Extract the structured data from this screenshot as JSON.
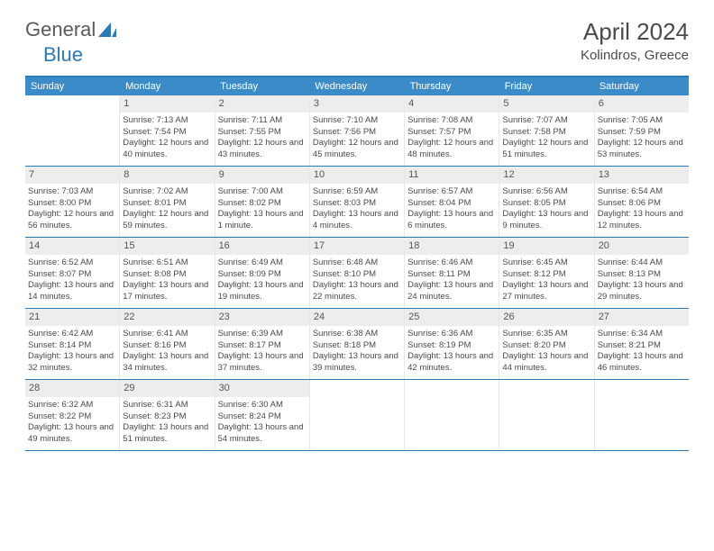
{
  "logo": {
    "text1": "General",
    "text2": "Blue"
  },
  "title": "April 2024",
  "location": "Kolindros, Greece",
  "colors": {
    "header_bg": "#3b8bc8",
    "header_border": "#2a7ab8",
    "daynum_bg": "#ededed",
    "text": "#4a4a4a",
    "cell_border": "#e8e8e8"
  },
  "dow": [
    "Sunday",
    "Monday",
    "Tuesday",
    "Wednesday",
    "Thursday",
    "Friday",
    "Saturday"
  ],
  "weeks": [
    [
      {
        "n": "",
        "sr": "",
        "ss": "",
        "dl": ""
      },
      {
        "n": "1",
        "sr": "7:13 AM",
        "ss": "7:54 PM",
        "dl": "12 hours and 40 minutes."
      },
      {
        "n": "2",
        "sr": "7:11 AM",
        "ss": "7:55 PM",
        "dl": "12 hours and 43 minutes."
      },
      {
        "n": "3",
        "sr": "7:10 AM",
        "ss": "7:56 PM",
        "dl": "12 hours and 45 minutes."
      },
      {
        "n": "4",
        "sr": "7:08 AM",
        "ss": "7:57 PM",
        "dl": "12 hours and 48 minutes."
      },
      {
        "n": "5",
        "sr": "7:07 AM",
        "ss": "7:58 PM",
        "dl": "12 hours and 51 minutes."
      },
      {
        "n": "6",
        "sr": "7:05 AM",
        "ss": "7:59 PM",
        "dl": "12 hours and 53 minutes."
      }
    ],
    [
      {
        "n": "7",
        "sr": "7:03 AM",
        "ss": "8:00 PM",
        "dl": "12 hours and 56 minutes."
      },
      {
        "n": "8",
        "sr": "7:02 AM",
        "ss": "8:01 PM",
        "dl": "12 hours and 59 minutes."
      },
      {
        "n": "9",
        "sr": "7:00 AM",
        "ss": "8:02 PM",
        "dl": "13 hours and 1 minute."
      },
      {
        "n": "10",
        "sr": "6:59 AM",
        "ss": "8:03 PM",
        "dl": "13 hours and 4 minutes."
      },
      {
        "n": "11",
        "sr": "6:57 AM",
        "ss": "8:04 PM",
        "dl": "13 hours and 6 minutes."
      },
      {
        "n": "12",
        "sr": "6:56 AM",
        "ss": "8:05 PM",
        "dl": "13 hours and 9 minutes."
      },
      {
        "n": "13",
        "sr": "6:54 AM",
        "ss": "8:06 PM",
        "dl": "13 hours and 12 minutes."
      }
    ],
    [
      {
        "n": "14",
        "sr": "6:52 AM",
        "ss": "8:07 PM",
        "dl": "13 hours and 14 minutes."
      },
      {
        "n": "15",
        "sr": "6:51 AM",
        "ss": "8:08 PM",
        "dl": "13 hours and 17 minutes."
      },
      {
        "n": "16",
        "sr": "6:49 AM",
        "ss": "8:09 PM",
        "dl": "13 hours and 19 minutes."
      },
      {
        "n": "17",
        "sr": "6:48 AM",
        "ss": "8:10 PM",
        "dl": "13 hours and 22 minutes."
      },
      {
        "n": "18",
        "sr": "6:46 AM",
        "ss": "8:11 PM",
        "dl": "13 hours and 24 minutes."
      },
      {
        "n": "19",
        "sr": "6:45 AM",
        "ss": "8:12 PM",
        "dl": "13 hours and 27 minutes."
      },
      {
        "n": "20",
        "sr": "6:44 AM",
        "ss": "8:13 PM",
        "dl": "13 hours and 29 minutes."
      }
    ],
    [
      {
        "n": "21",
        "sr": "6:42 AM",
        "ss": "8:14 PM",
        "dl": "13 hours and 32 minutes."
      },
      {
        "n": "22",
        "sr": "6:41 AM",
        "ss": "8:16 PM",
        "dl": "13 hours and 34 minutes."
      },
      {
        "n": "23",
        "sr": "6:39 AM",
        "ss": "8:17 PM",
        "dl": "13 hours and 37 minutes."
      },
      {
        "n": "24",
        "sr": "6:38 AM",
        "ss": "8:18 PM",
        "dl": "13 hours and 39 minutes."
      },
      {
        "n": "25",
        "sr": "6:36 AM",
        "ss": "8:19 PM",
        "dl": "13 hours and 42 minutes."
      },
      {
        "n": "26",
        "sr": "6:35 AM",
        "ss": "8:20 PM",
        "dl": "13 hours and 44 minutes."
      },
      {
        "n": "27",
        "sr": "6:34 AM",
        "ss": "8:21 PM",
        "dl": "13 hours and 46 minutes."
      }
    ],
    [
      {
        "n": "28",
        "sr": "6:32 AM",
        "ss": "8:22 PM",
        "dl": "13 hours and 49 minutes."
      },
      {
        "n": "29",
        "sr": "6:31 AM",
        "ss": "8:23 PM",
        "dl": "13 hours and 51 minutes."
      },
      {
        "n": "30",
        "sr": "6:30 AM",
        "ss": "8:24 PM",
        "dl": "13 hours and 54 minutes."
      },
      {
        "n": "",
        "sr": "",
        "ss": "",
        "dl": ""
      },
      {
        "n": "",
        "sr": "",
        "ss": "",
        "dl": ""
      },
      {
        "n": "",
        "sr": "",
        "ss": "",
        "dl": ""
      },
      {
        "n": "",
        "sr": "",
        "ss": "",
        "dl": ""
      }
    ]
  ],
  "labels": {
    "sunrise": "Sunrise:",
    "sunset": "Sunset:",
    "daylight": "Daylight:"
  }
}
